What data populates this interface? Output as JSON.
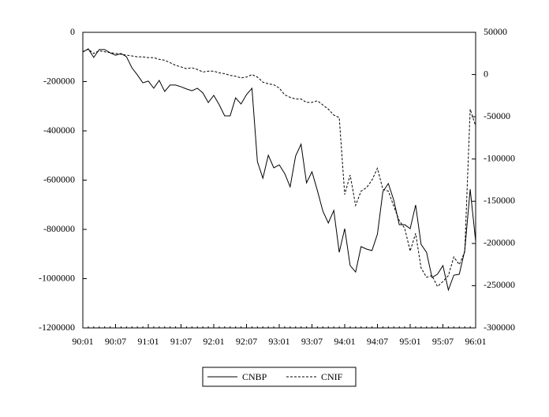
{
  "chart_data": {
    "type": "line",
    "categories": [
      "90:01",
      null,
      null,
      null,
      null,
      null,
      "90:07",
      null,
      null,
      null,
      null,
      null,
      "91:01",
      null,
      null,
      null,
      null,
      null,
      "91:07",
      null,
      null,
      null,
      null,
      null,
      "92:01",
      null,
      null,
      null,
      null,
      null,
      "92:07",
      null,
      null,
      null,
      null,
      null,
      "93:01",
      null,
      null,
      null,
      null,
      null,
      "93:07",
      null,
      null,
      null,
      null,
      null,
      "94:01",
      null,
      null,
      null,
      null,
      null,
      "94:07",
      null,
      null,
      null,
      null,
      null,
      "95:01",
      null,
      null,
      null,
      null,
      null,
      "95:07",
      null,
      null,
      null,
      null,
      null,
      "96:01"
    ],
    "series": [
      {
        "name": "CNBP",
        "color": "#000000",
        "line_style": "solid",
        "axis": "y",
        "values": [
          -80000,
          -67000,
          -102000,
          -70000,
          -70000,
          -83000,
          -93000,
          -86000,
          -99000,
          -144000,
          -173000,
          -205000,
          -198000,
          -227000,
          -195000,
          -240000,
          -214000,
          -214000,
          -221000,
          -230000,
          -237000,
          -227000,
          -246000,
          -285000,
          -256000,
          -294000,
          -339000,
          -339000,
          -266000,
          -291000,
          -253000,
          -227000,
          -525000,
          -592000,
          -499000,
          -550000,
          -538000,
          -573000,
          -627000,
          -502000,
          -454000,
          -611000,
          -566000,
          -643000,
          -726000,
          -774000,
          -723000,
          -893000,
          -797000,
          -947000,
          -973000,
          -870000,
          -880000,
          -886000,
          -819000,
          -646000,
          -614000,
          -682000,
          -781000,
          -781000,
          -797000,
          -701000,
          -861000,
          -893000,
          -995000,
          -982000,
          -947000,
          -1046000,
          -986000,
          -982000,
          -886000,
          -637000,
          -848000
        ]
      },
      {
        "name": "CNIF",
        "color": "#000000",
        "line_style": "dashed",
        "axis": "y2",
        "values": [
          27000,
          30000,
          25000,
          28000,
          27000,
          26000,
          25000,
          24000,
          23000,
          22000,
          21000,
          21000,
          20000,
          20000,
          18000,
          17000,
          14000,
          11000,
          9000,
          7000,
          8000,
          6000,
          3000,
          4000,
          4000,
          2000,
          1000,
          -1000,
          -2000,
          -4000,
          -3000,
          0,
          -3000,
          -9000,
          -11000,
          -12000,
          -16000,
          -24000,
          -27000,
          -29000,
          -29000,
          -33000,
          -33000,
          -31000,
          -36000,
          -41000,
          -48000,
          -51000,
          -142000,
          -119000,
          -155000,
          -138000,
          -134000,
          -125000,
          -111000,
          -136000,
          -138000,
          -156000,
          -173000,
          -182000,
          -209000,
          -188000,
          -229000,
          -240000,
          -238000,
          -251000,
          -245000,
          -238000,
          -216000,
          -225000,
          -210000,
          -41000,
          -61000
        ]
      }
    ],
    "ylim": [
      -1200000,
      0
    ],
    "yticks": [
      0,
      -200000,
      -400000,
      -600000,
      -800000,
      -1000000,
      -1200000
    ],
    "y2lim": [
      -300000,
      50000
    ],
    "y2ticks": [
      50000,
      0,
      -50000,
      -100000,
      -150000,
      -200000,
      -250000,
      -300000
    ],
    "grid": false,
    "legend": "bottom"
  }
}
